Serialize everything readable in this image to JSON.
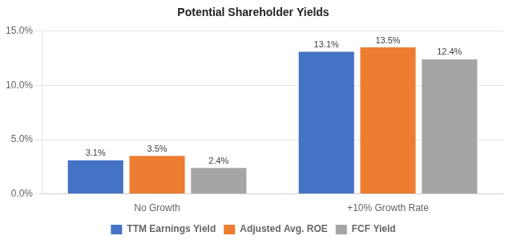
{
  "chart_data": {
    "type": "bar",
    "title": "Potential Shareholder Yields",
    "categories": [
      "No Growth",
      "+10% Growth Rate"
    ],
    "series": [
      {
        "name": "TTM Earnings Yield",
        "color": "#4472C4",
        "values": [
          3.1,
          13.1
        ],
        "value_labels": [
          "3.1%",
          "13.1%"
        ]
      },
      {
        "name": "Adjusted Avg. ROE",
        "color": "#ED7D31",
        "values": [
          3.5,
          13.5
        ],
        "value_labels": [
          "3.5%",
          "13.5%"
        ]
      },
      {
        "name": "FCF Yield",
        "color": "#A5A5A5",
        "values": [
          2.4,
          12.4
        ],
        "value_labels": [
          "2.4%",
          "12.4%"
        ]
      }
    ],
    "ylim": [
      0,
      15.0
    ],
    "yticks": [
      {
        "value": 0.0,
        "label": "0.0%"
      },
      {
        "value": 5.0,
        "label": "5.0%"
      },
      {
        "value": 10.0,
        "label": "10.0%"
      },
      {
        "value": 15.0,
        "label": "15.0%"
      }
    ],
    "grid": true,
    "legend": "bottom",
    "data_labels": true
  }
}
